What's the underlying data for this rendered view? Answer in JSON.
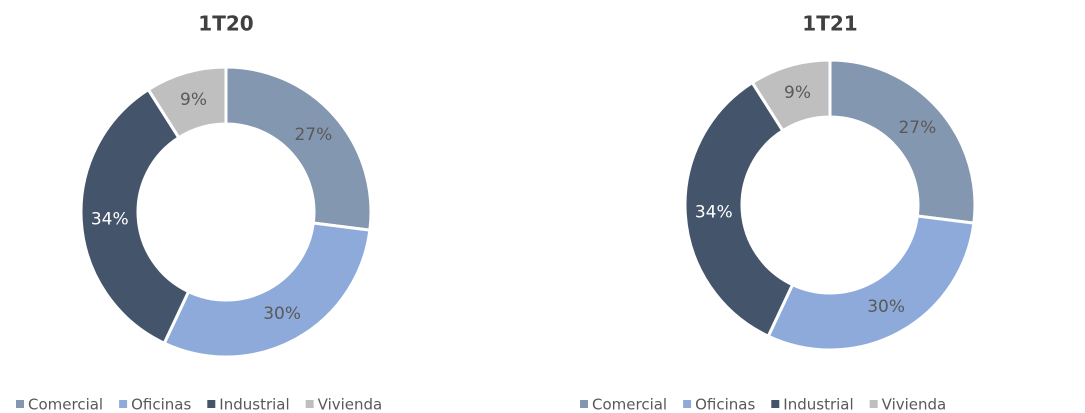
{
  "chart_data": [
    {
      "type": "pie",
      "title": "1T20",
      "categories": [
        "Comercial",
        "Oficinas",
        "Industrial",
        "Vivienda"
      ],
      "values": [
        27,
        30,
        34,
        9
      ],
      "value_labels": [
        "27%",
        "30%",
        "34%",
        "9%"
      ],
      "colors": [
        "#8497b0",
        "#8eaadb",
        "#44546a",
        "#bfbfbf"
      ],
      "legend": "bottom"
    },
    {
      "type": "pie",
      "title": "1T21",
      "categories": [
        "Comercial",
        "Oficinas",
        "Industrial",
        "Vivienda"
      ],
      "values": [
        27,
        30,
        34,
        9
      ],
      "value_labels": [
        "27%",
        "30%",
        "34%",
        "9%"
      ],
      "colors": [
        "#8497b0",
        "#8eaadb",
        "#44546a",
        "#bfbfbf"
      ],
      "legend": "bottom"
    }
  ]
}
